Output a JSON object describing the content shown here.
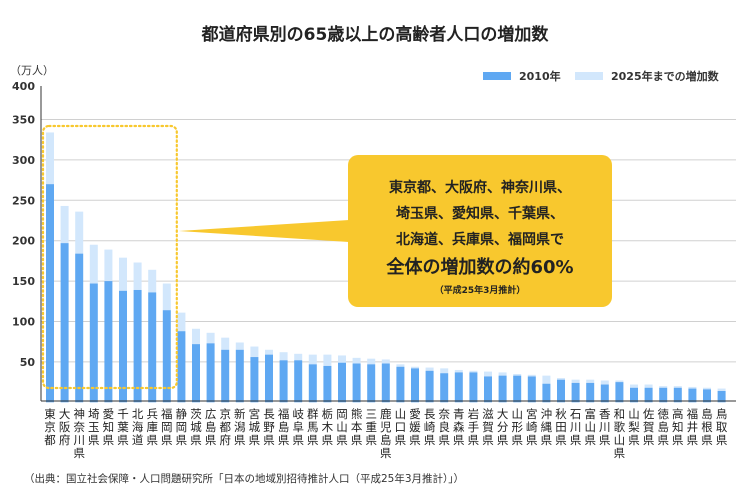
{
  "chart_data": {
    "type": "bar",
    "stacked": true,
    "title": "都道府県別の65歳以上の高齢者人口の増加数",
    "ylabel": "（万人）",
    "ylim": [
      0,
      400
    ],
    "yticks": [
      50,
      100,
      150,
      200,
      250,
      300,
      350,
      400
    ],
    "grid": true,
    "legend_position": "top-right",
    "categories": [
      "東京都",
      "大阪府",
      "神奈川県",
      "埼玉県",
      "愛知県",
      "千葉県",
      "北海道",
      "兵庫県",
      "福岡県",
      "静岡県",
      "茨城県",
      "広島県",
      "京都府",
      "新潟県",
      "宮城県",
      "長野県",
      "福島県",
      "岐阜県",
      "群馬県",
      "栃木県",
      "岡山県",
      "熊本県",
      "三重県",
      "鹿児島県",
      "山口県",
      "愛媛県",
      "長崎県",
      "奈良県",
      "青森県",
      "岩手県",
      "滋賀県",
      "大分県",
      "山形県",
      "宮崎県",
      "沖縄県",
      "秋田県",
      "石川県",
      "富山県",
      "香川県",
      "和歌山県",
      "山梨県",
      "佐賀県",
      "徳島県",
      "高知県",
      "福井県",
      "島根県",
      "鳥取県"
    ],
    "series": [
      {
        "name": "2010年",
        "color": "#5fa8f2",
        "values": [
          270,
          197,
          184,
          147,
          150,
          138,
          139,
          136,
          114,
          88,
          72,
          73,
          65,
          65,
          56,
          59,
          52,
          52,
          47,
          45,
          49,
          48,
          47,
          48,
          44,
          42,
          39,
          36,
          37,
          37,
          32,
          33,
          33,
          32,
          23,
          28,
          24,
          24,
          22,
          25,
          18,
          18,
          18,
          18,
          17,
          16,
          14
        ]
      },
      {
        "name": "2025年までの増加数",
        "color": "#d2e7fc",
        "values": [
          64,
          46,
          52,
          48,
          39,
          41,
          34,
          28,
          33,
          23,
          19,
          13,
          15,
          9,
          13,
          6,
          10,
          8,
          12,
          14,
          9,
          7,
          7,
          5,
          3,
          2,
          4,
          6,
          3,
          2,
          6,
          4,
          2,
          2,
          10,
          2,
          4,
          4,
          5,
          2,
          4,
          4,
          2,
          2,
          2,
          2,
          3
        ]
      }
    ],
    "highlight_count": 9,
    "annotation": {
      "lines": [
        "東京都、大阪府、神奈川県、",
        "埼玉県、愛知県、千葉県、",
        "北海道、兵庫県、福岡県で"
      ],
      "emphasis": "全体の増加数の約60%",
      "note": "（平成25年3月推計）",
      "color": "#f8c82e"
    }
  },
  "source": "（出典：国立社会保障・人口問題研究所「日本の地域別招待推計人口（平成25年3月推計）」）"
}
